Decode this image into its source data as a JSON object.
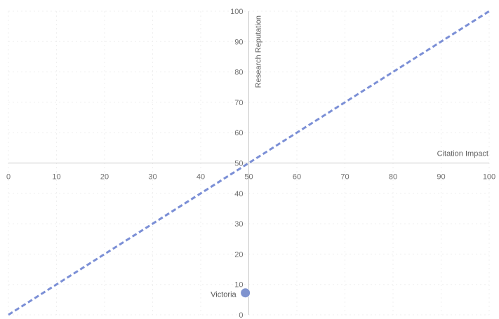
{
  "chart_data": {
    "type": "scatter",
    "title": "",
    "xlabel": "Citation Impact",
    "ylabel": "Research Reputation",
    "xlim": [
      0,
      100
    ],
    "ylim": [
      0,
      100
    ],
    "x_ticks": [
      0,
      10,
      20,
      30,
      40,
      50,
      60,
      70,
      80,
      90,
      100
    ],
    "y_ticks": [
      0,
      10,
      20,
      30,
      40,
      50,
      60,
      70,
      80,
      90,
      100
    ],
    "grid": false,
    "axes_cross_at": [
      50,
      50
    ],
    "reference_line": {
      "x": [
        0,
        100
      ],
      "y": [
        0,
        100
      ],
      "style": "dashed",
      "color": "#7b8fd6"
    },
    "points": [
      {
        "label": "Victoria",
        "x": 49,
        "y": 7,
        "color": "#7f93cf"
      }
    ]
  }
}
